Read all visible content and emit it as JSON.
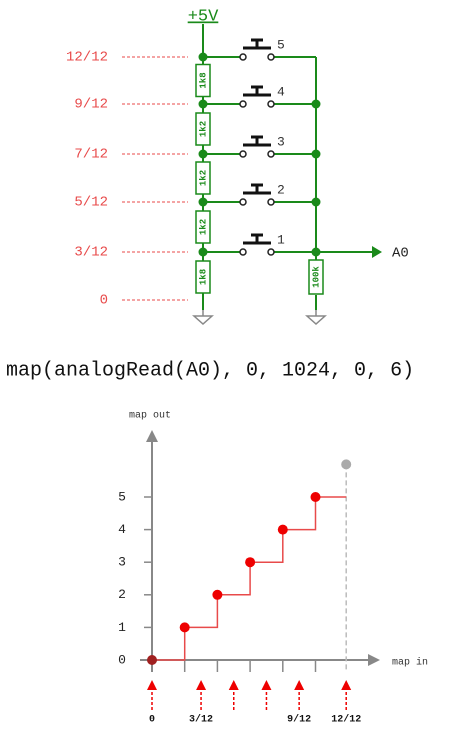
{
  "circuit": {
    "supply": "+5V",
    "levels": [
      "12/12",
      "9/12",
      "7/12",
      "5/12",
      "3/12",
      "0"
    ],
    "resistors": [
      "1k8",
      "1k2",
      "1k2",
      "1k2",
      "1k8"
    ],
    "buttons": [
      "5",
      "4",
      "3",
      "2",
      "1"
    ],
    "pulldown": "100k",
    "output": "A0"
  },
  "code": "map(analogRead(A0), 0, 1024, 0, 6)",
  "chart": {
    "y_label": "map out",
    "x_label": "map in",
    "yticks": [
      0,
      1,
      2,
      3,
      4,
      5
    ],
    "x_labels": [
      "0",
      "3/12",
      "9/12",
      "12/12"
    ],
    "steps": [
      0,
      1,
      2,
      3,
      4,
      5,
      6
    ]
  }
}
